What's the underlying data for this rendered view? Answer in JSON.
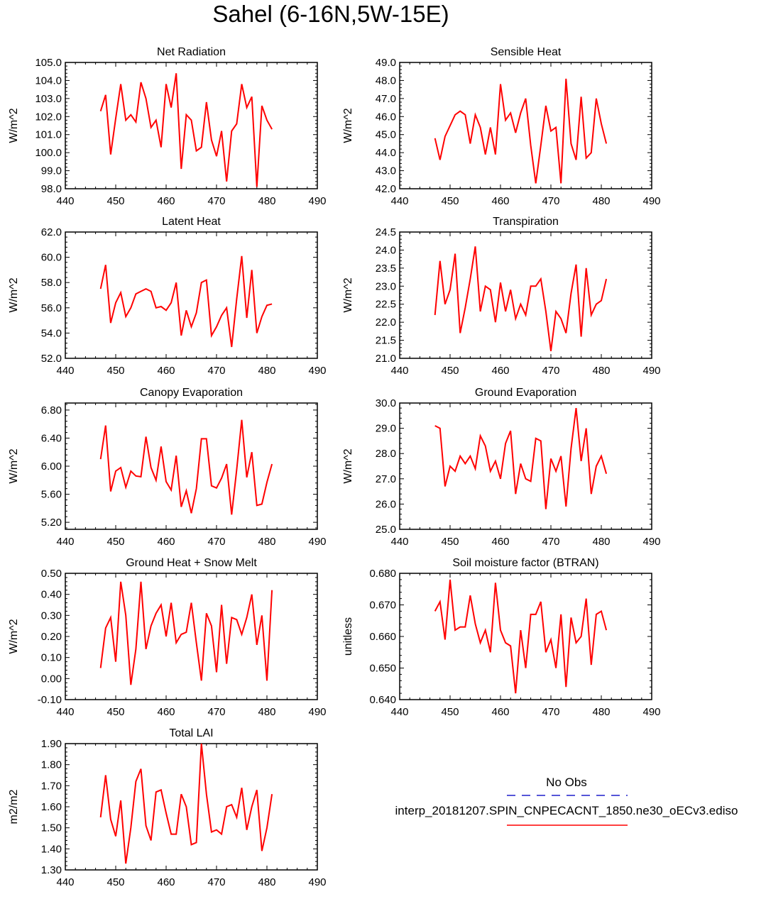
{
  "title": "Sahel (6-16N,5W-15E)",
  "legend": {
    "obs_label": "No Obs",
    "obs_color": "#1f1fcc",
    "model_label": "interp_20181207.SPIN_CNPECACNT_1850.ne30_oECv3.ediso",
    "model_color": "#ff0000"
  },
  "chart_data": [
    {
      "type": "line",
      "title": "Net Radiation",
      "ylabel": "W/m^2",
      "xlim": [
        440,
        490
      ],
      "ylim": [
        98.0,
        105.0
      ],
      "xticks": [
        "440",
        "450",
        "460",
        "470",
        "480",
        "490"
      ],
      "yticks": [
        "98.0",
        "99.0",
        "100.0",
        "101.0",
        "102.0",
        "103.0",
        "104.0",
        "105.0"
      ],
      "x": [
        447,
        448,
        449,
        450,
        451,
        452,
        453,
        454,
        455,
        456,
        457,
        458,
        459,
        460,
        461,
        462,
        463,
        464,
        465,
        466,
        467,
        468,
        469,
        470,
        471,
        472,
        473,
        474,
        475,
        476,
        477,
        478,
        479,
        480,
        481
      ],
      "series": [
        {
          "name": "model",
          "values": [
            102.3,
            103.2,
            99.9,
            101.9,
            103.8,
            101.8,
            102.1,
            101.7,
            103.9,
            103.0,
            101.4,
            101.8,
            100.3,
            103.8,
            102.5,
            104.4,
            99.1,
            102.1,
            101.8,
            100.1,
            100.3,
            102.8,
            100.7,
            99.8,
            101.2,
            98.4,
            101.2,
            101.6,
            103.8,
            102.5,
            103.1,
            98.1,
            102.6,
            101.8,
            101.3
          ]
        }
      ]
    },
    {
      "type": "line",
      "title": "Sensible Heat",
      "ylabel": "W/m^2",
      "xlim": [
        440,
        490
      ],
      "ylim": [
        42.0,
        49.0
      ],
      "xticks": [
        "440",
        "450",
        "460",
        "470",
        "480",
        "490"
      ],
      "yticks": [
        "42.0",
        "43.0",
        "44.0",
        "45.0",
        "46.0",
        "47.0",
        "48.0",
        "49.0"
      ],
      "x": [
        447,
        448,
        449,
        450,
        451,
        452,
        453,
        454,
        455,
        456,
        457,
        458,
        459,
        460,
        461,
        462,
        463,
        464,
        465,
        466,
        467,
        468,
        469,
        470,
        471,
        472,
        473,
        474,
        475,
        476,
        477,
        478,
        479,
        480,
        481
      ],
      "series": [
        {
          "name": "model",
          "values": [
            44.8,
            43.6,
            44.9,
            45.5,
            46.1,
            46.3,
            46.1,
            44.5,
            46.1,
            45.4,
            43.9,
            45.4,
            43.9,
            47.8,
            45.8,
            46.2,
            45.1,
            46.2,
            47.0,
            44.4,
            42.3,
            44.4,
            46.6,
            45.2,
            45.4,
            42.3,
            48.1,
            44.5,
            43.6,
            47.1,
            43.7,
            44.0,
            47.0,
            45.6,
            44.5
          ]
        }
      ]
    },
    {
      "type": "line",
      "title": "Latent Heat",
      "ylabel": "W/m^2",
      "xlim": [
        440,
        490
      ],
      "ylim": [
        52.0,
        62.0
      ],
      "xticks": [
        "440",
        "450",
        "460",
        "470",
        "480",
        "490"
      ],
      "yticks": [
        "52.0",
        "54.0",
        "56.0",
        "58.0",
        "60.0",
        "62.0"
      ],
      "x": [
        447,
        448,
        449,
        450,
        451,
        452,
        453,
        454,
        455,
        456,
        457,
        458,
        459,
        460,
        461,
        462,
        463,
        464,
        465,
        466,
        467,
        468,
        469,
        470,
        471,
        472,
        473,
        474,
        475,
        476,
        477,
        478,
        479,
        480,
        481
      ],
      "series": [
        {
          "name": "model",
          "values": [
            57.5,
            59.4,
            54.8,
            56.4,
            57.2,
            55.3,
            56.0,
            57.1,
            57.3,
            57.5,
            57.3,
            56.0,
            56.1,
            55.8,
            56.4,
            58.0,
            53.8,
            55.8,
            54.5,
            55.6,
            58.0,
            58.2,
            53.8,
            54.5,
            55.4,
            56.0,
            52.9,
            56.7,
            60.1,
            55.2,
            59.0,
            54.0,
            55.3,
            56.2,
            56.3
          ]
        }
      ]
    },
    {
      "type": "line",
      "title": "Transpiration",
      "ylabel": "W/m^2",
      "xlim": [
        440,
        490
      ],
      "ylim": [
        21.0,
        24.5
      ],
      "xticks": [
        "440",
        "450",
        "460",
        "470",
        "480",
        "490"
      ],
      "yticks": [
        "21.0",
        "21.5",
        "22.0",
        "22.5",
        "23.0",
        "23.5",
        "24.0",
        "24.5"
      ],
      "x": [
        447,
        448,
        449,
        450,
        451,
        452,
        453,
        454,
        455,
        456,
        457,
        458,
        459,
        460,
        461,
        462,
        463,
        464,
        465,
        466,
        467,
        468,
        469,
        470,
        471,
        472,
        473,
        474,
        475,
        476,
        477,
        478,
        479,
        480,
        481
      ],
      "series": [
        {
          "name": "model",
          "values": [
            22.2,
            23.7,
            22.5,
            22.9,
            23.9,
            21.7,
            22.4,
            23.2,
            24.1,
            22.3,
            23.0,
            22.9,
            22.0,
            23.1,
            22.3,
            22.9,
            22.1,
            22.5,
            22.2,
            23.0,
            23.0,
            23.2,
            22.3,
            21.2,
            22.3,
            22.1,
            21.7,
            22.8,
            23.6,
            21.6,
            23.5,
            22.2,
            22.5,
            22.6,
            23.2
          ]
        }
      ]
    },
    {
      "type": "line",
      "title": "Canopy Evaporation",
      "ylabel": "W/m^2",
      "xlim": [
        440,
        490
      ],
      "ylim": [
        5.1,
        6.9
      ],
      "xticks": [
        "440",
        "450",
        "460",
        "470",
        "480",
        "490"
      ],
      "yticks": [
        "5.20",
        "5.60",
        "6.00",
        "6.40",
        "6.80"
      ],
      "x": [
        447,
        448,
        449,
        450,
        451,
        452,
        453,
        454,
        455,
        456,
        457,
        458,
        459,
        460,
        461,
        462,
        463,
        464,
        465,
        466,
        467,
        468,
        469,
        470,
        471,
        472,
        473,
        474,
        475,
        476,
        477,
        478,
        479,
        480,
        481
      ],
      "series": [
        {
          "name": "model",
          "values": [
            6.1,
            6.58,
            5.64,
            5.93,
            5.98,
            5.7,
            5.93,
            5.86,
            5.85,
            6.42,
            5.98,
            5.8,
            6.28,
            5.78,
            5.66,
            6.15,
            5.42,
            5.65,
            5.33,
            5.68,
            6.39,
            6.39,
            5.72,
            5.69,
            5.83,
            6.03,
            5.31,
            5.95,
            6.66,
            5.84,
            6.2,
            5.44,
            5.46,
            5.77,
            6.03
          ]
        }
      ]
    },
    {
      "type": "line",
      "title": "Ground Evaporation",
      "ylabel": "W/m^2",
      "xlim": [
        440,
        490
      ],
      "ylim": [
        25.0,
        30.0
      ],
      "xticks": [
        "440",
        "450",
        "460",
        "470",
        "480",
        "490"
      ],
      "yticks": [
        "25.0",
        "26.0",
        "27.0",
        "28.0",
        "29.0",
        "30.0"
      ],
      "x": [
        447,
        448,
        449,
        450,
        451,
        452,
        453,
        454,
        455,
        456,
        457,
        458,
        459,
        460,
        461,
        462,
        463,
        464,
        465,
        466,
        467,
        468,
        469,
        470,
        471,
        472,
        473,
        474,
        475,
        476,
        477,
        478,
        479,
        480,
        481
      ],
      "series": [
        {
          "name": "model",
          "values": [
            29.1,
            29.0,
            26.7,
            27.5,
            27.3,
            27.9,
            27.6,
            27.9,
            27.4,
            28.7,
            28.3,
            27.3,
            27.7,
            27.0,
            28.4,
            28.9,
            26.4,
            27.6,
            27.0,
            26.9,
            28.6,
            28.5,
            25.8,
            27.8,
            27.3,
            27.9,
            25.9,
            28.2,
            29.8,
            27.7,
            29.0,
            26.4,
            27.5,
            27.9,
            27.2
          ]
        }
      ]
    },
    {
      "type": "line",
      "title": "Ground Heat + Snow Melt",
      "ylabel": "W/m^2",
      "xlim": [
        440,
        490
      ],
      "ylim": [
        -0.1,
        0.5
      ],
      "xticks": [
        "440",
        "450",
        "460",
        "470",
        "480",
        "490"
      ],
      "yticks": [
        "-0.10",
        "0.00",
        "0.10",
        "0.20",
        "0.30",
        "0.40",
        "0.50"
      ],
      "x": [
        447,
        448,
        449,
        450,
        451,
        452,
        453,
        454,
        455,
        456,
        457,
        458,
        459,
        460,
        461,
        462,
        463,
        464,
        465,
        466,
        467,
        468,
        469,
        470,
        471,
        472,
        473,
        474,
        475,
        476,
        477,
        478,
        479,
        480,
        481
      ],
      "series": [
        {
          "name": "model",
          "values": [
            0.05,
            0.24,
            0.29,
            0.08,
            0.46,
            0.3,
            -0.03,
            0.14,
            0.46,
            0.14,
            0.25,
            0.31,
            0.35,
            0.2,
            0.36,
            0.17,
            0.21,
            0.22,
            0.36,
            0.17,
            -0.01,
            0.31,
            0.25,
            0.03,
            0.35,
            0.07,
            0.29,
            0.28,
            0.21,
            0.29,
            0.4,
            0.16,
            0.3,
            -0.01,
            0.42
          ]
        }
      ]
    },
    {
      "type": "line",
      "title": "Soil moisture factor (BTRAN)",
      "ylabel": "unitless",
      "xlim": [
        440,
        490
      ],
      "ylim": [
        0.64,
        0.68
      ],
      "xticks": [
        "440",
        "450",
        "460",
        "470",
        "480",
        "490"
      ],
      "yticks": [
        "0.640",
        "0.650",
        "0.660",
        "0.670",
        "0.680"
      ],
      "x": [
        447,
        448,
        449,
        450,
        451,
        452,
        453,
        454,
        455,
        456,
        457,
        458,
        459,
        460,
        461,
        462,
        463,
        464,
        465,
        466,
        467,
        468,
        469,
        470,
        471,
        472,
        473,
        474,
        475,
        476,
        477,
        478,
        479,
        480,
        481
      ],
      "series": [
        {
          "name": "model",
          "values": [
            0.668,
            0.671,
            0.659,
            0.678,
            0.662,
            0.663,
            0.663,
            0.673,
            0.664,
            0.658,
            0.662,
            0.655,
            0.677,
            0.662,
            0.658,
            0.657,
            0.642,
            0.662,
            0.65,
            0.667,
            0.667,
            0.671,
            0.655,
            0.659,
            0.65,
            0.667,
            0.644,
            0.666,
            0.658,
            0.66,
            0.672,
            0.651,
            0.667,
            0.668,
            0.662
          ]
        }
      ]
    },
    {
      "type": "line",
      "title": "Total LAI",
      "ylabel": "m2/m2",
      "xlim": [
        440,
        490
      ],
      "ylim": [
        1.3,
        1.9
      ],
      "xticks": [
        "440",
        "450",
        "460",
        "470",
        "480",
        "490"
      ],
      "yticks": [
        "1.30",
        "1.40",
        "1.50",
        "1.60",
        "1.70",
        "1.80",
        "1.90"
      ],
      "x": [
        447,
        448,
        449,
        450,
        451,
        452,
        453,
        454,
        455,
        456,
        457,
        458,
        459,
        460,
        461,
        462,
        463,
        464,
        465,
        466,
        467,
        468,
        469,
        470,
        471,
        472,
        473,
        474,
        475,
        476,
        477,
        478,
        479,
        480,
        481
      ],
      "series": [
        {
          "name": "model",
          "values": [
            1.55,
            1.75,
            1.54,
            1.46,
            1.63,
            1.33,
            1.5,
            1.72,
            1.78,
            1.51,
            1.44,
            1.67,
            1.68,
            1.57,
            1.47,
            1.47,
            1.66,
            1.6,
            1.42,
            1.43,
            1.9,
            1.66,
            1.48,
            1.49,
            1.47,
            1.6,
            1.61,
            1.55,
            1.69,
            1.49,
            1.6,
            1.68,
            1.39,
            1.5,
            1.66
          ]
        }
      ]
    }
  ]
}
